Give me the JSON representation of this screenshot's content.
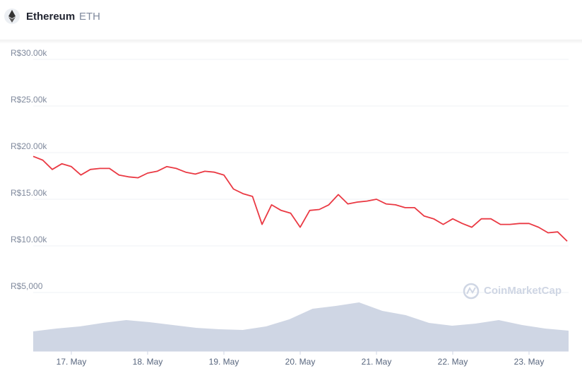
{
  "header": {
    "name": "Ethereum",
    "symbol": "ETH"
  },
  "chart_data": {
    "type": "line",
    "categories": [
      null,
      null,
      null,
      null,
      "17. May",
      null,
      null,
      null,
      null,
      null,
      null,
      null,
      "18. May",
      null,
      null,
      null,
      null,
      null,
      null,
      null,
      "19. May",
      null,
      null,
      null,
      null,
      null,
      null,
      null,
      "20. May",
      null,
      null,
      null,
      null,
      null,
      null,
      null,
      "21. May",
      null,
      null,
      null,
      null,
      null,
      null,
      null,
      "22. May",
      null,
      null,
      null,
      null,
      null,
      null,
      null,
      "23. May",
      null,
      null,
      null,
      null
    ],
    "series": [
      {
        "color": "#ea3943",
        "values": [
          19600,
          19200,
          18200,
          18800,
          18500,
          17600,
          18200,
          18300,
          18300,
          17600,
          17400,
          17300,
          17800,
          18000,
          18500,
          18300,
          17900,
          17700,
          18000,
          17900,
          17600,
          16100,
          15600,
          15300,
          12300,
          14400,
          13800,
          13500,
          12000,
          13800,
          13900,
          14400,
          15500,
          14500,
          14700,
          14800,
          15000,
          14500,
          14400,
          14100,
          14100,
          13200,
          12900,
          12300,
          12900,
          12400,
          12000,
          12900,
          12900,
          12300,
          12300,
          12400,
          12400,
          12000,
          11400,
          11500,
          10500
        ]
      }
    ],
    "ylim": [
      0,
      30000
    ],
    "yticks": [
      {
        "value": 5000,
        "label": "R$5,000"
      },
      {
        "value": 10000,
        "label": "R$10.00k"
      },
      {
        "value": 15000,
        "label": "R$15.00k"
      },
      {
        "value": 20000,
        "label": "R$20.00k"
      },
      {
        "value": 25000,
        "label": "R$25.00k"
      },
      {
        "value": 30000,
        "label": "R$30.00k"
      }
    ],
    "grid": true,
    "volume": {
      "color": "#cfd6e4",
      "ylim": [
        0,
        70
      ],
      "values": [
        28,
        32,
        35,
        40,
        44,
        41,
        37,
        33,
        31,
        30,
        35,
        45,
        60,
        64,
        69,
        57,
        51,
        40,
        36,
        39,
        44,
        37,
        32,
        29
      ]
    },
    "watermark": "CoinMarketCap"
  }
}
